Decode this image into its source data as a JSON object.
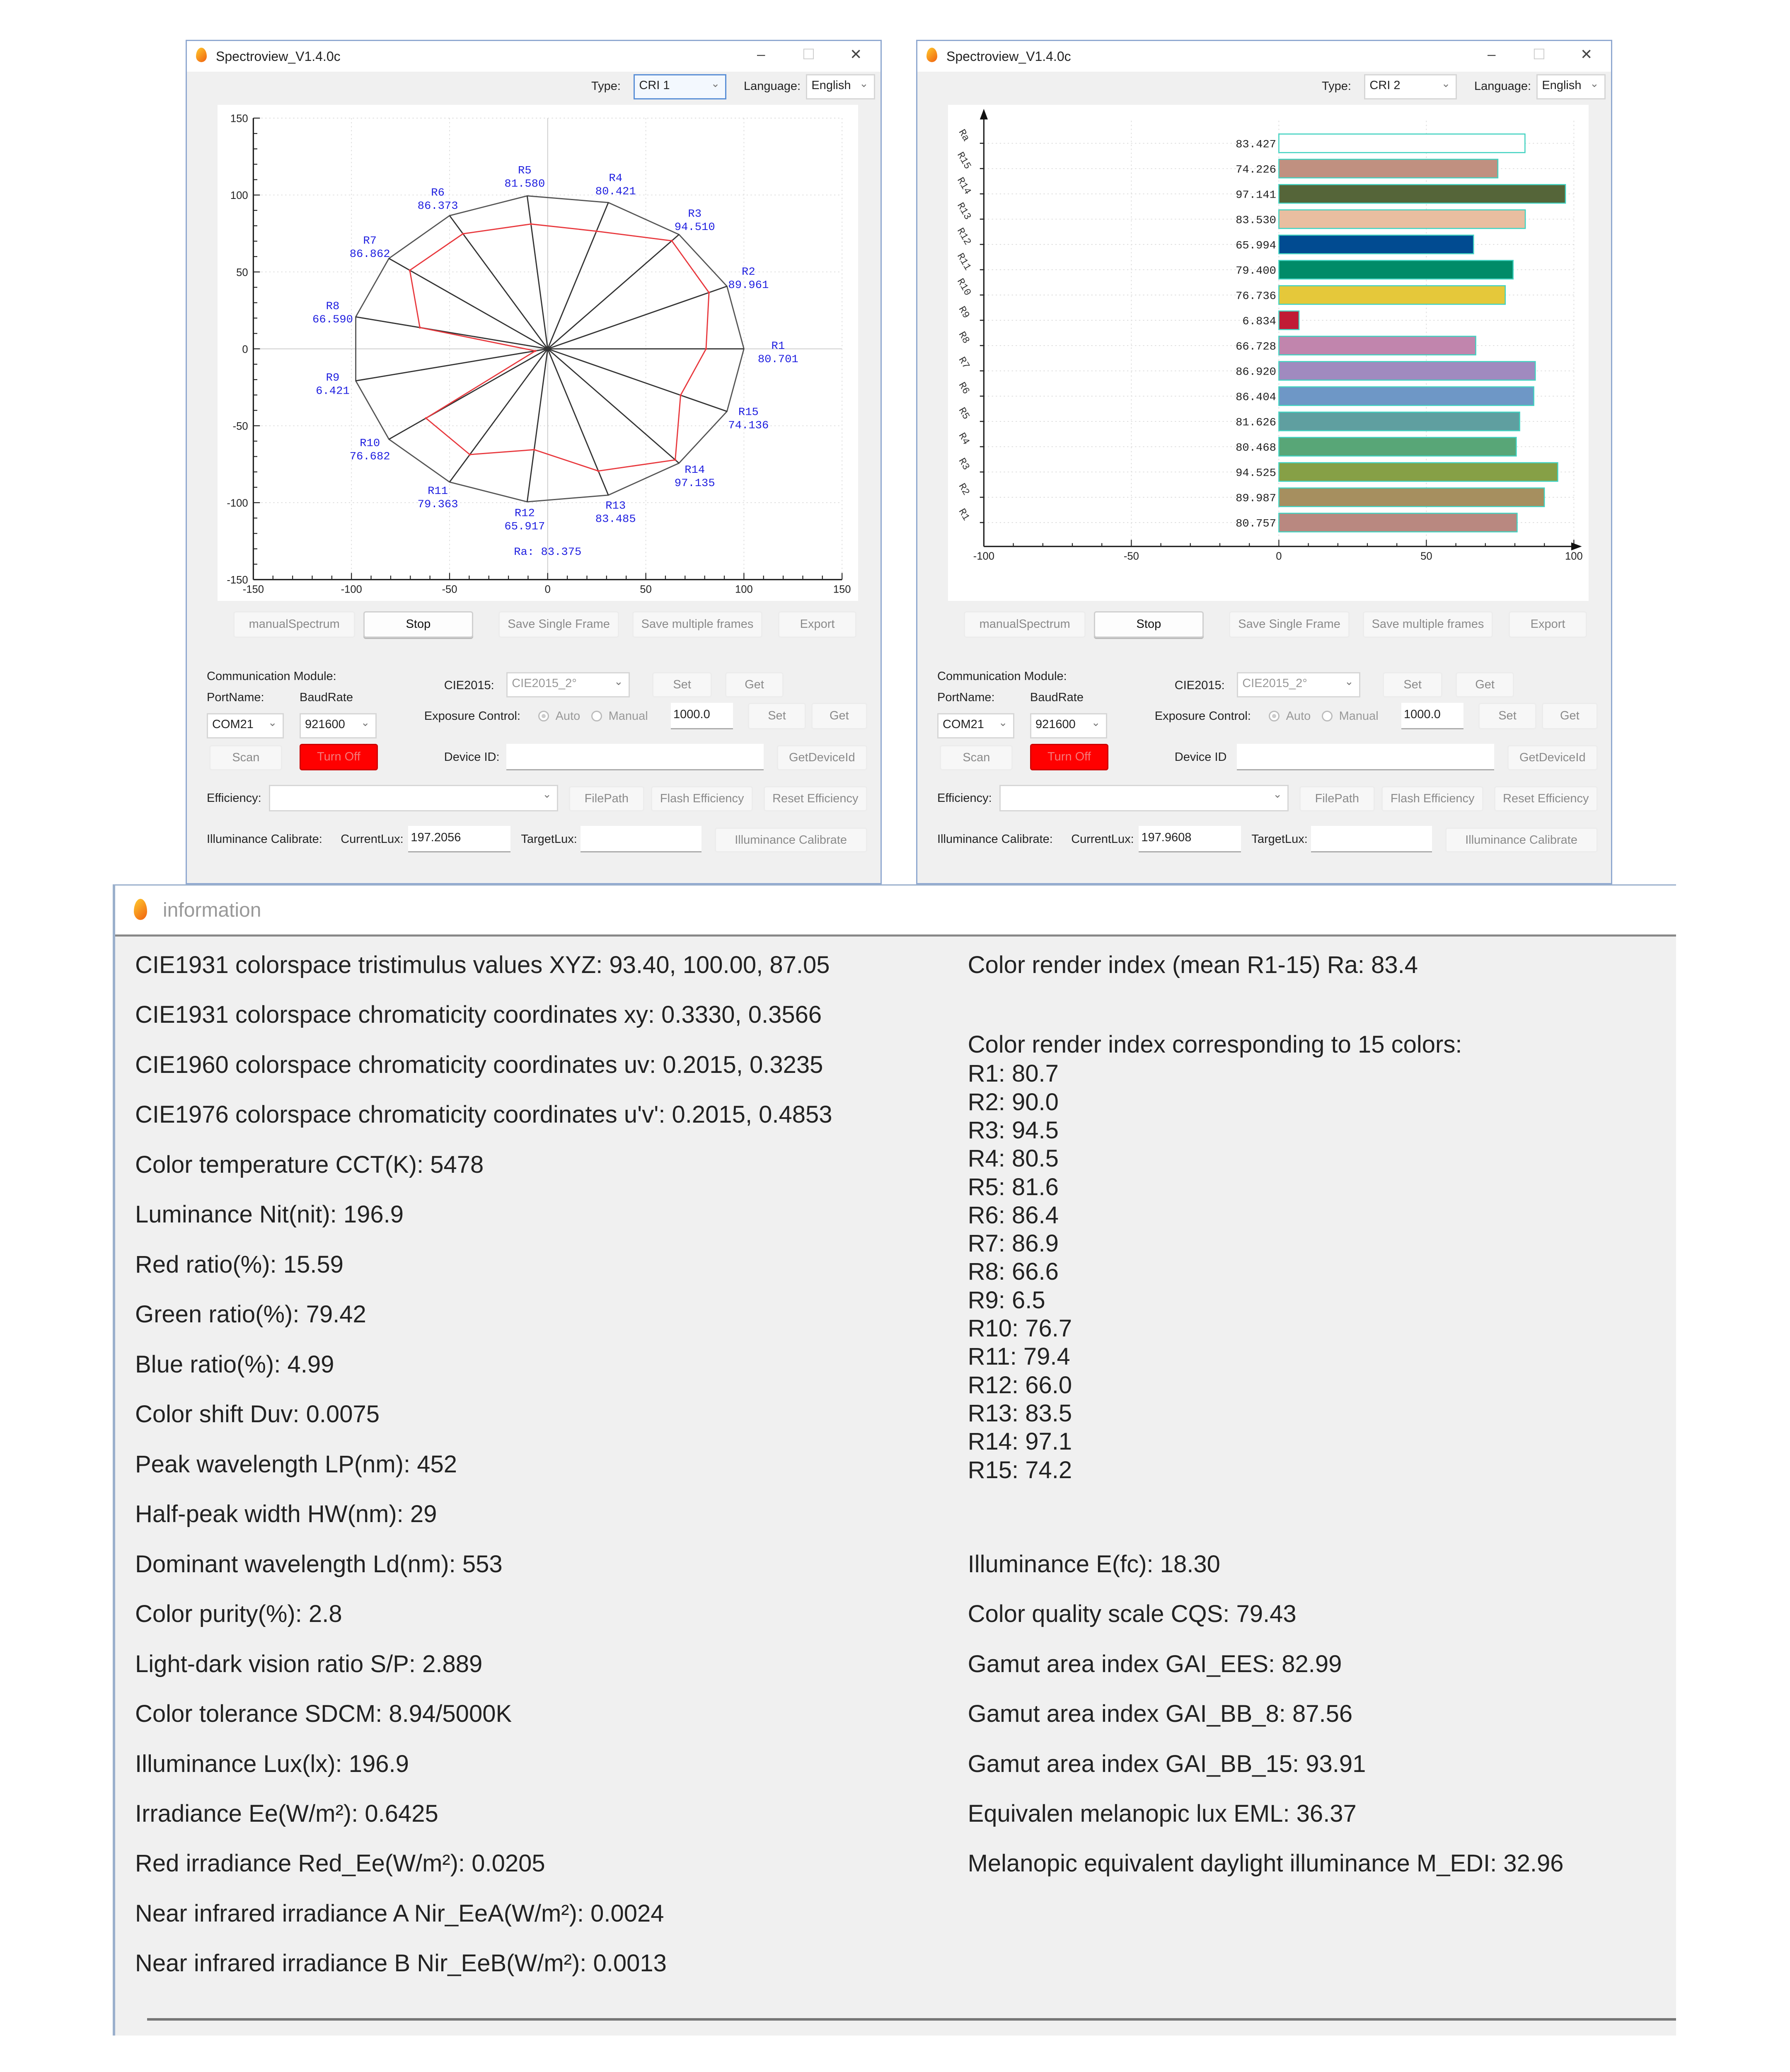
{
  "windows": [
    {
      "title": "Spectroview_V1.4.0c",
      "controls": {
        "minimize": "–",
        "maximize": "☐",
        "close": "✕"
      },
      "type_label": "Type:",
      "type_value": "CRI 1",
      "language_label": "Language:",
      "language_value": "English",
      "buttons": {
        "manual": "manualSpectrum",
        "stop": "Stop",
        "save_single": "Save Single Frame",
        "save_multiple": "Save multiple frames",
        "export": "Export"
      },
      "comm": {
        "label": "Communication Module:",
        "port_label": "PortName:",
        "baud_label": "BaudRate",
        "port_value": "COM21",
        "baud_value": "921600",
        "scan": "Scan",
        "turn_off": "Turn Off"
      },
      "cie": {
        "label": "CIE2015:",
        "value": "CIE2015_2°",
        "set": "Set",
        "get": "Get"
      },
      "exposure": {
        "label": "Exposure Control:",
        "auto": "Auto",
        "manual": "Manual",
        "value": "1000.0",
        "set": "Set",
        "get": "Get"
      },
      "device": {
        "label": "Device ID:",
        "value": "",
        "button": "GetDeviceId"
      },
      "efficiency": {
        "label": "Efficiency:",
        "value": "",
        "filepath": "FilePath",
        "flash": "Flash Efficiency",
        "reset": "Reset Efficiency"
      },
      "illum": {
        "label": "Illuminance Calibrate:",
        "current_label": "CurrentLux:",
        "current_value": "197.2056",
        "target_label": "TargetLux:",
        "target_value": "",
        "button": "Illuminance Calibrate"
      }
    },
    {
      "title": "Spectroview_V1.4.0c",
      "controls": {
        "minimize": "–",
        "maximize": "☐",
        "close": "✕"
      },
      "type_label": "Type:",
      "type_value": "CRI 2",
      "language_label": "Language:",
      "language_value": "English",
      "buttons": {
        "manual": "manualSpectrum",
        "stop": "Stop",
        "save_single": "Save Single Frame",
        "save_multiple": "Save multiple frames",
        "export": "Export"
      },
      "comm": {
        "label": "Communication Module:",
        "port_label": "PortName:",
        "baud_label": "BaudRate",
        "port_value": "COM21",
        "baud_value": "921600",
        "scan": "Scan",
        "turn_off": "Turn Off"
      },
      "cie": {
        "label": "CIE2015:",
        "value": "CIE2015_2°",
        "set": "Set",
        "get": "Get"
      },
      "exposure": {
        "label": "Exposure Control:",
        "auto": "Auto",
        "manual": "Manual",
        "value": "1000.0",
        "set": "Set",
        "get": "Get"
      },
      "device": {
        "label": "Device ID",
        "value": "",
        "button": "GetDeviceId"
      },
      "efficiency": {
        "label": "Efficiency:",
        "value": "",
        "filepath": "FilePath",
        "flash": "Flash Efficiency",
        "reset": "Reset Efficiency"
      },
      "illum": {
        "label": "Illuminance Calibrate:",
        "current_label": "CurrentLux:",
        "current_value": "197.9608",
        "target_label": "TargetLux:",
        "target_value": "",
        "button": "Illuminance Calibrate"
      }
    }
  ],
  "chart_data": [
    {
      "type": "radar",
      "categories": [
        "R1",
        "R2",
        "R3",
        "R4",
        "R5",
        "R6",
        "R7",
        "R8",
        "R9",
        "R10",
        "R11",
        "R12",
        "R13",
        "R14",
        "R15"
      ],
      "values": [
        80.701,
        89.961,
        94.51,
        80.421,
        81.58,
        86.373,
        86.862,
        66.59,
        6.421,
        76.682,
        79.363,
        65.917,
        83.485,
        97.135,
        74.136
      ],
      "value_labels": [
        "80.701",
        "89.961",
        "94.510",
        "80.421",
        "81.580",
        "86.373",
        "86.862",
        "66.590",
        "6.421",
        "76.682",
        "79.363",
        "65.917",
        "83.485",
        "97.135",
        "74.136"
      ],
      "reference_radius": 100,
      "annotation": "Ra: 83.375",
      "xlim": [
        -150,
        150
      ],
      "ylim": [
        -150,
        150
      ],
      "xticks": [
        "-150",
        "-100",
        "-50",
        "0",
        "50",
        "100",
        "150"
      ],
      "yticks": [
        "150",
        "100",
        "50",
        "0",
        "-50",
        "-100",
        "-150"
      ],
      "grid": true,
      "colors": {
        "reference": "#555555",
        "series": "#e8383d",
        "labels": "#1f1fe0"
      }
    },
    {
      "type": "bar",
      "orientation": "horizontal",
      "categories": [
        "R1",
        "R2",
        "R3",
        "R4",
        "R5",
        "R6",
        "R7",
        "R8",
        "R9",
        "R10",
        "R11",
        "R12",
        "R13",
        "R14",
        "R15",
        "Ra"
      ],
      "values": [
        80.757,
        89.987,
        94.525,
        80.468,
        81.626,
        86.404,
        86.92,
        66.728,
        6.834,
        76.736,
        79.4,
        65.994,
        83.53,
        97.141,
        74.226,
        83.427
      ],
      "value_labels": [
        "80.757",
        "89.987",
        "94.525",
        "80.468",
        "81.626",
        "86.404",
        "86.920",
        "66.728",
        "6.834",
        "76.736",
        "79.400",
        "65.994",
        "83.530",
        "97.141",
        "74.226",
        "83.427"
      ],
      "colors": [
        "#b98880",
        "#a68f5f",
        "#86a046",
        "#58a677",
        "#5f9fa0",
        "#6e97c6",
        "#a08abf",
        "#c185ad",
        "#c11b35",
        "#e5c83a",
        "#008b68",
        "#014b91",
        "#e9bea0",
        "#556539",
        "#c09080",
        "#ffffff"
      ],
      "border_color": "#3fd2c0",
      "xlim": [
        -100,
        100
      ],
      "xticks": [
        "-100",
        "-50",
        "0",
        "50",
        "100"
      ],
      "grid": true
    }
  ],
  "info": {
    "title": "information",
    "left": [
      "CIE1931 colorspace tristimulus values XYZ: 93.40, 100.00, 87.05",
      "CIE1931 colorspace chromaticity coordinates xy: 0.3330, 0.3566",
      "CIE1960 colorspace chromaticity coordinates uv: 0.2015, 0.3235",
      "CIE1976 colorspace chromaticity coordinates u'v': 0.2015, 0.4853",
      "Color temperature CCT(K): 5478",
      "Luminance Nit(nit): 196.9",
      "Red ratio(%): 15.59",
      "Green ratio(%): 79.42",
      "Blue ratio(%): 4.99",
      "Color shift Duv: 0.0075",
      "Peak wavelength LP(nm): 452",
      "Half-peak width HW(nm): 29",
      "Dominant wavelength Ld(nm): 553",
      "Color purity(%): 2.8",
      "Light-dark vision ratio S/P: 2.889",
      "Color tolerance SDCM: 8.94/5000K",
      "Illuminance Lux(lx): 196.9",
      "Irradiance Ee(W/m²): 0.6425",
      "Red irradiance Red_Ee(W/m²): 0.0205",
      "Near infrared irradiance A Nir_EeA(W/m²): 0.0024",
      "Near infrared irradiance B Nir_EeB(W/m²): 0.0013"
    ],
    "ra_line": "Color render index (mean R1-15) Ra: 83.4",
    "cri_header": "Color render index corresponding to 15 colors:",
    "cri": [
      "R1:  80.7",
      "R2:  90.0",
      "R3:  94.5",
      "R4:  80.5",
      "R5:  81.6",
      "R6:  86.4",
      "R7:  86.9",
      "R8:  66.6",
      "R9:  6.5",
      "R10: 76.7",
      "R11: 79.4",
      "R12: 66.0",
      "R13: 83.5",
      "R14: 97.1",
      "R15: 74.2"
    ],
    "right_lower": [
      "Illuminance E(fc): 18.30",
      "Color quality scale CQS: 79.43",
      "Gamut area index GAI_EES: 82.99",
      "Gamut area index GAI_BB_8: 87.56",
      "Gamut area index GAI_BB_15: 93.91",
      "Equivalen melanopic lux EML: 36.37",
      "Melanopic equivalent daylight illuminance M_EDI: 32.96"
    ]
  }
}
